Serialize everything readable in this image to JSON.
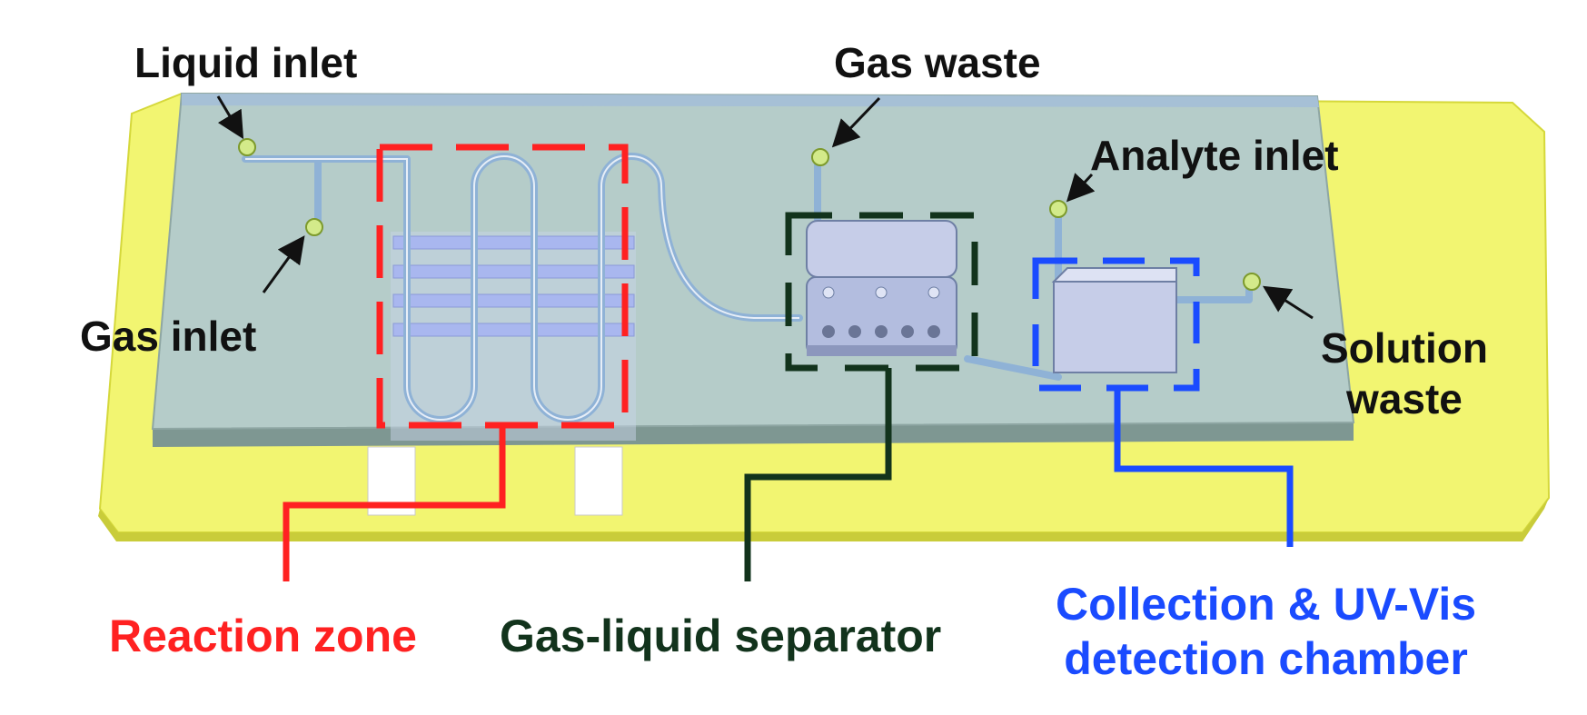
{
  "labels": {
    "liquid_inlet": "Liquid inlet",
    "gas_inlet": "Gas inlet",
    "gas_waste": "Gas waste",
    "analyte_inlet": "Analyte inlet",
    "solution_waste_line1": "Solution",
    "solution_waste_line2": "waste",
    "reaction_zone": "Reaction zone",
    "gas_liquid_separator": "Gas-liquid separator",
    "collection_line1": "Collection & UV-Vis",
    "collection_line2": "detection chamber"
  },
  "colors": {
    "base_plate": "#f2f571",
    "chip_top": "#b5ccc9",
    "reaction_zone": "#ff2121",
    "separator": "#12331c",
    "collection_chamber": "#1a4bff",
    "channel": "#8fb2d6",
    "inlet_port": "#d3ea8a"
  }
}
